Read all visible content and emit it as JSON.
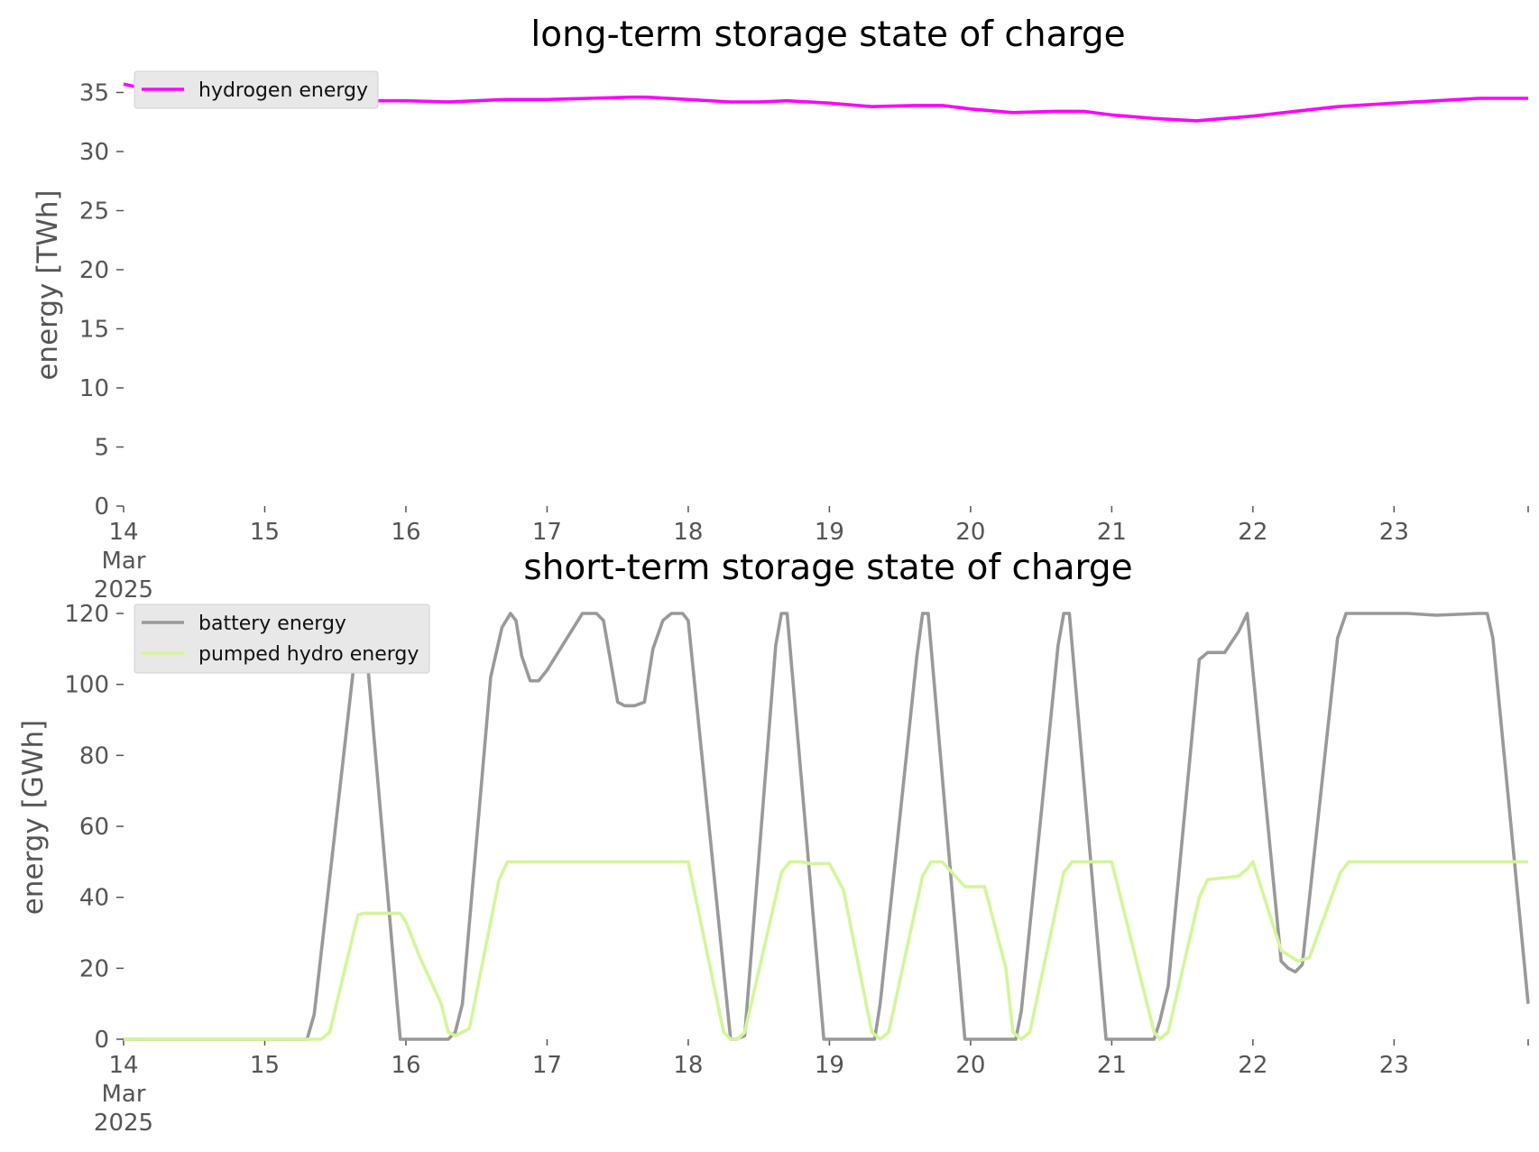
{
  "chart_data": [
    {
      "type": "line",
      "title": "long-term storage state of charge",
      "xlabel": "",
      "ylabel": "energy [TWh]",
      "x_ticks": [
        "14",
        "15",
        "16",
        "17",
        "18",
        "19",
        "20",
        "21",
        "22",
        "23"
      ],
      "x_tick_sub": [
        "Mar",
        "2025"
      ],
      "xlim": [
        0,
        9.95
      ],
      "ylim": [
        0,
        35.8
      ],
      "y_ticks": [
        0,
        5,
        10,
        15,
        20,
        25,
        30,
        35
      ],
      "grid": false,
      "legend": "top-left",
      "series": [
        {
          "name": "hydrogen energy",
          "color": "#ff00ff",
          "x": [
            0,
            0.2,
            0.5,
            0.9,
            1.3,
            1.7,
            2.0,
            2.3,
            2.7,
            3.0,
            3.3,
            3.6,
            3.7,
            4.0,
            4.3,
            4.5,
            4.7,
            5.0,
            5.3,
            5.6,
            5.8,
            6.0,
            6.3,
            6.6,
            6.8,
            7.0,
            7.3,
            7.6,
            7.8,
            8.0,
            8.3,
            8.6,
            9.0,
            9.3,
            9.6,
            9.95
          ],
          "y": [
            35.7,
            35.2,
            34.7,
            34.4,
            34.3,
            34.3,
            34.3,
            34.2,
            34.4,
            34.4,
            34.5,
            34.6,
            34.6,
            34.4,
            34.2,
            34.2,
            34.3,
            34.1,
            33.8,
            33.9,
            33.9,
            33.6,
            33.3,
            33.4,
            33.4,
            33.1,
            32.8,
            32.6,
            32.8,
            33.0,
            33.4,
            33.8,
            34.1,
            34.3,
            34.5,
            34.5
          ]
        }
      ]
    },
    {
      "type": "line",
      "title": "short-term storage state of charge",
      "xlabel": "",
      "ylabel": "energy [GWh]",
      "x_ticks": [
        "14",
        "15",
        "16",
        "17",
        "18",
        "19",
        "20",
        "21",
        "22",
        "23"
      ],
      "x_tick_sub": [
        "Mar",
        "2025"
      ],
      "xlim": [
        0,
        9.95
      ],
      "ylim": [
        0,
        120
      ],
      "y_ticks": [
        0,
        20,
        40,
        60,
        80,
        100,
        120
      ],
      "grid": false,
      "legend": "top-left",
      "series": [
        {
          "name": "battery energy",
          "color": "#999999",
          "x": [
            0,
            1.3,
            1.35,
            1.65,
            1.7,
            1.96,
            2.3,
            2.35,
            2.4,
            2.6,
            2.68,
            2.74,
            2.78,
            2.82,
            2.88,
            2.94,
            3.0,
            3.25,
            3.3,
            3.35,
            3.4,
            3.5,
            3.55,
            3.62,
            3.69,
            3.75,
            3.82,
            3.88,
            3.96,
            4.0,
            4.3,
            4.34,
            4.4,
            4.62,
            4.66,
            4.7,
            4.96,
            5.0,
            5.32,
            5.36,
            5.62,
            5.66,
            5.7,
            5.96,
            6.0,
            6.32,
            6.36,
            6.62,
            6.66,
            6.7,
            6.96,
            7.0,
            7.3,
            7.34,
            7.4,
            7.62,
            7.68,
            7.76,
            7.8,
            7.9,
            7.96,
            8.2,
            8.25,
            8.3,
            8.35,
            8.6,
            8.66,
            8.9,
            9.1,
            9.3,
            9.6,
            9.66,
            9.7,
            9.95
          ],
          "y": [
            0,
            0,
            7,
            112,
            119,
            0,
            0,
            2,
            10,
            102,
            116,
            120,
            118,
            108,
            101,
            101,
            104,
            120,
            120,
            120,
            118,
            95,
            94,
            94,
            95,
            110,
            118,
            120,
            120,
            118,
            0,
            0,
            1,
            111,
            120,
            120,
            0,
            0,
            0,
            10,
            108,
            120,
            120,
            0,
            0,
            0,
            8,
            111,
            120,
            120,
            0,
            0,
            0,
            5,
            15,
            107,
            109,
            109,
            109,
            115,
            120,
            22,
            20,
            19,
            21,
            113,
            120,
            120,
            120,
            119.5,
            120,
            120,
            113,
            10
          ]
        },
        {
          "name": "pumped hydro energy",
          "color": "#d4f59a",
          "x": [
            0,
            1.4,
            1.46,
            1.66,
            1.7,
            1.96,
            2.0,
            2.1,
            2.25,
            2.3,
            2.35,
            2.45,
            2.66,
            2.72,
            2.78,
            3.0,
            3.75,
            3.96,
            4.0,
            4.25,
            4.3,
            4.35,
            4.4,
            4.66,
            4.72,
            4.8,
            4.86,
            4.96,
            5.0,
            5.1,
            5.3,
            5.36,
            5.42,
            5.66,
            5.72,
            5.8,
            5.96,
            6.0,
            6.1,
            6.25,
            6.3,
            6.36,
            6.42,
            6.66,
            6.72,
            6.8,
            6.96,
            7.0,
            7.3,
            7.34,
            7.4,
            7.62,
            7.68,
            7.8,
            7.9,
            7.96,
            8.0,
            8.2,
            8.32,
            8.4,
            8.62,
            8.68,
            9.0,
            9.95
          ],
          "y": [
            0,
            0,
            2,
            35,
            35.5,
            35.5,
            33,
            23,
            10,
            2,
            1,
            3,
            45,
            50,
            50,
            50,
            50,
            50,
            50,
            2,
            0,
            0,
            2,
            47,
            50,
            50,
            49.5,
            49.5,
            49.5,
            42,
            2,
            0,
            2,
            46,
            50,
            50,
            43,
            43,
            43,
            20,
            2,
            0,
            2,
            47,
            50,
            50,
            50,
            50,
            2,
            0,
            2,
            40,
            45,
            45.5,
            46,
            48,
            50,
            25,
            22,
            23,
            47,
            50,
            50,
            50
          ]
        }
      ]
    }
  ]
}
